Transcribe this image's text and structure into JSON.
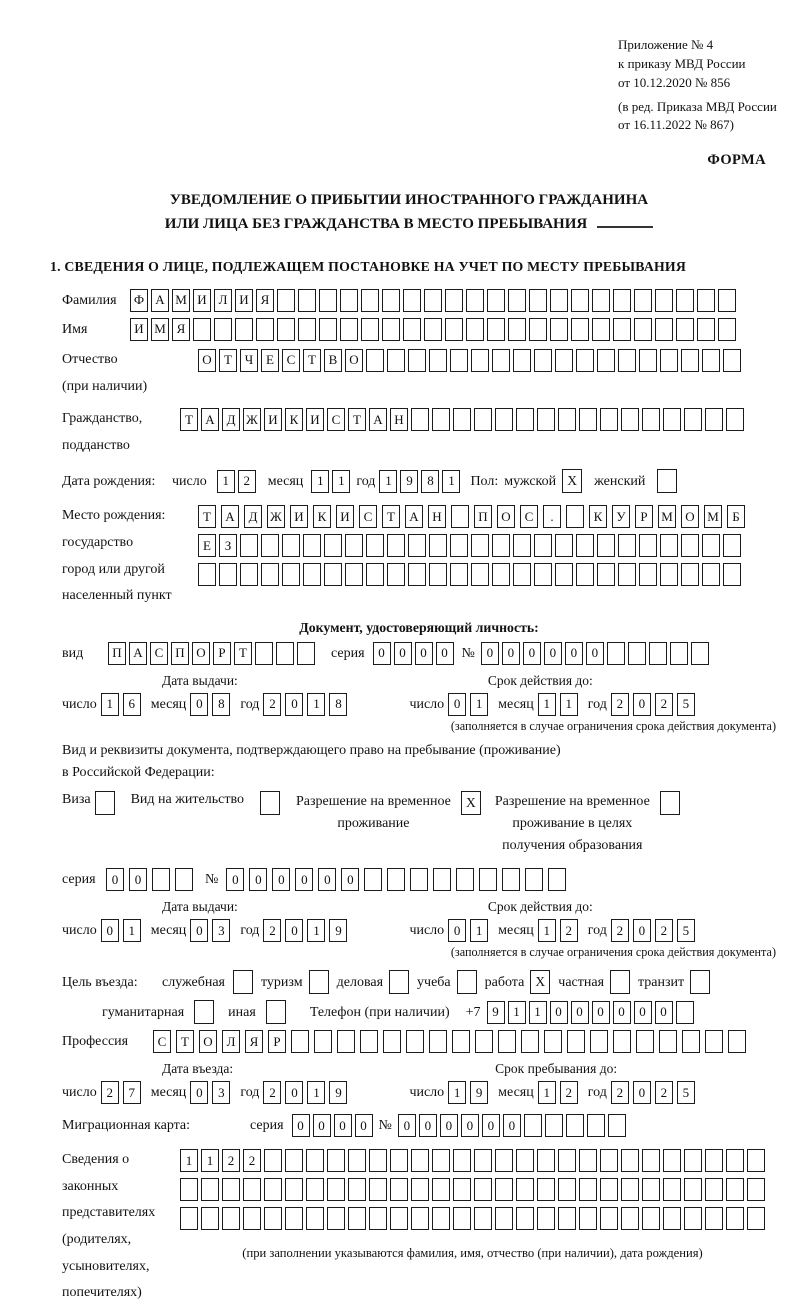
{
  "annex": {
    "lines": [
      "Приложение № 4",
      "к приказу МВД России",
      "от 10.12.2020 № 856"
    ],
    "note_lines": [
      "(в ред. Приказа МВД России",
      "от 16.11.2022 № 867)"
    ]
  },
  "forma_label": "ФОРМА",
  "title": {
    "line1": "УВЕДОМЛЕНИЕ О ПРИБЫТИИ ИНОСТРАННОГО ГРАЖДАНИНА",
    "line2": "ИЛИ ЛИЦА БЕЗ ГРАЖДАНСТВА В МЕСТО ПРЕБЫВАНИЯ"
  },
  "section1_title": "1. СВЕДЕНИЯ О ЛИЦЕ, ПОДЛЕЖАЩЕМ ПОСТАНОВКЕ НА УЧЕТ ПО МЕСТУ ПРЕБЫВАНИЯ",
  "labels": {
    "day": "число",
    "month": "месяц",
    "year": "год",
    "series": "серия",
    "number": "№"
  },
  "surname": {
    "label": "Фамилия",
    "cells": {
      "chars": [
        "Ф",
        "А",
        "М",
        "И",
        "Л",
        "И",
        "Я"
      ],
      "total": 29
    }
  },
  "name": {
    "label": "Имя",
    "cells": {
      "chars": [
        "И",
        "М",
        "Я"
      ],
      "total": 29
    }
  },
  "patronymic": {
    "label": "Отчество",
    "label_note": "(при наличии)",
    "cells": {
      "chars": [
        "О",
        "Т",
        "Ч",
        "Е",
        "С",
        "Т",
        "В",
        "О"
      ],
      "total": 26
    }
  },
  "citizenship": {
    "label_line1": "Гражданство,",
    "label_line2": "подданство",
    "cells": {
      "chars": [
        "Т",
        "А",
        "Д",
        "Ж",
        "И",
        "К",
        "И",
        "С",
        "Т",
        "А",
        "Н"
      ],
      "total": 27
    }
  },
  "birth_date": {
    "label": "Дата рождения:",
    "day": {
      "chars": [
        "1",
        "2"
      ],
      "total": 2
    },
    "month": {
      "chars": [
        "1",
        "1"
      ],
      "total": 2
    },
    "year": {
      "chars": [
        "1",
        "9",
        "8",
        "1"
      ],
      "total": 4
    }
  },
  "sex": {
    "label": "Пол:",
    "male_label": "мужской",
    "male_mark": "X",
    "female_label": "женский",
    "female_mark": ""
  },
  "birth_place": {
    "labels": [
      "Место рождения:",
      "государство",
      "город или другой",
      "населенный пункт"
    ],
    "row1": {
      "chars": [
        "Т",
        "А",
        "Д",
        "Ж",
        "И",
        "К",
        "И",
        "С",
        "Т",
        "А",
        "Н",
        "",
        "П",
        "О",
        "С",
        ".",
        "",
        "К",
        "У",
        "Р",
        "М",
        "О",
        "М",
        "Б"
      ],
      "total": 24
    },
    "row2": {
      "chars": [
        "Е",
        "З"
      ],
      "total": 26
    },
    "row3": {
      "chars": [],
      "total": 26
    }
  },
  "identity_doc": {
    "title": "Документ, удостоверяющий личность:",
    "kind_label": "вид",
    "kind": {
      "chars": [
        "П",
        "А",
        "С",
        "П",
        "О",
        "Р",
        "Т"
      ],
      "total": 10
    },
    "series": {
      "chars": [
        "0",
        "0",
        "0",
        "0"
      ],
      "total": 4
    },
    "number": {
      "chars": [
        "0",
        "0",
        "0",
        "0",
        "0",
        "0"
      ],
      "total": 11
    },
    "issue_caption": "Дата выдачи:",
    "issue": {
      "day": {
        "chars": [
          "1",
          "6"
        ],
        "total": 2
      },
      "month": {
        "chars": [
          "0",
          "8"
        ],
        "total": 2
      },
      "year": {
        "chars": [
          "2",
          "0",
          "1",
          "8"
        ],
        "total": 4
      }
    },
    "valid_caption": "Срок действия до:",
    "valid": {
      "day": {
        "chars": [
          "0",
          "1"
        ],
        "total": 2
      },
      "month": {
        "chars": [
          "1",
          "1"
        ],
        "total": 2
      },
      "year": {
        "chars": [
          "2",
          "0",
          "2",
          "5"
        ],
        "total": 4
      }
    },
    "note": "(заполняется в случае ограничения срока действия документа)"
  },
  "residence_doc": {
    "intro_line1": "Вид и реквизиты документа, подтверждающего право на пребывание (проживание)",
    "intro_line2": "в Российской Федерации:",
    "visa_label": "Виза",
    "visa_mark": "",
    "residence_permit_label": "Вид на жительство",
    "residence_permit_mark": "",
    "temp_permit_lines": [
      "Разрешение на временное",
      "проживание"
    ],
    "temp_permit_mark": "X",
    "edu_permit_lines": [
      "Разрешение на временное",
      "проживание в целях",
      "получения образования"
    ],
    "edu_permit_mark": "",
    "series": {
      "chars": [
        "0",
        "0"
      ],
      "total": 4
    },
    "number": {
      "chars": [
        "0",
        "0",
        "0",
        "0",
        "0",
        "0"
      ],
      "total": 15
    },
    "issue_caption": "Дата выдачи:",
    "issue": {
      "day": {
        "chars": [
          "0",
          "1"
        ],
        "total": 2
      },
      "month": {
        "chars": [
          "0",
          "3"
        ],
        "total": 2
      },
      "year": {
        "chars": [
          "2",
          "0",
          "1",
          "9"
        ],
        "total": 4
      }
    },
    "valid_caption": "Срок действия до:",
    "valid": {
      "day": {
        "chars": [
          "0",
          "1"
        ],
        "total": 2
      },
      "month": {
        "chars": [
          "1",
          "2"
        ],
        "total": 2
      },
      "year": {
        "chars": [
          "2",
          "0",
          "2",
          "5"
        ],
        "total": 4
      }
    },
    "note": "(заполняется в случае ограничения срока действия документа)"
  },
  "purpose": {
    "label": "Цель въезда:",
    "options_row1": [
      {
        "label": "служебная",
        "mark": ""
      },
      {
        "label": "туризм",
        "mark": ""
      },
      {
        "label": "деловая",
        "mark": ""
      },
      {
        "label": "учеба",
        "mark": ""
      },
      {
        "label": "работа",
        "mark": "X"
      },
      {
        "label": "частная",
        "mark": ""
      },
      {
        "label": "транзит",
        "mark": ""
      }
    ],
    "options_row2": [
      {
        "label": "гуманитарная",
        "mark": ""
      },
      {
        "label": "иная",
        "mark": ""
      }
    ]
  },
  "phone": {
    "label": "Телефон (при наличии)",
    "prefix": "+7",
    "cells": {
      "chars": [
        "9",
        "1",
        "1",
        "0",
        "0",
        "0",
        "0",
        "0",
        "0"
      ],
      "total": 10
    }
  },
  "profession": {
    "label": "Профессия",
    "cells": {
      "chars": [
        "С",
        "Т",
        "О",
        "Л",
        "Я",
        "Р"
      ],
      "total": 26
    }
  },
  "entry": {
    "date_caption": "Дата въезда:",
    "date": {
      "day": {
        "chars": [
          "2",
          "7"
        ],
        "total": 2
      },
      "month": {
        "chars": [
          "0",
          "3"
        ],
        "total": 2
      },
      "year": {
        "chars": [
          "2",
          "0",
          "1",
          "9"
        ],
        "total": 4
      }
    },
    "until_caption": "Срок пребывания до:",
    "until": {
      "day": {
        "chars": [
          "1",
          "9"
        ],
        "total": 2
      },
      "month": {
        "chars": [
          "1",
          "2"
        ],
        "total": 2
      },
      "year": {
        "chars": [
          "2",
          "0",
          "2",
          "5"
        ],
        "total": 4
      }
    }
  },
  "migration_card": {
    "label": "Миграционная карта:",
    "series": {
      "chars": [
        "0",
        "0",
        "0",
        "0"
      ],
      "total": 4
    },
    "number": {
      "chars": [
        "0",
        "0",
        "0",
        "0",
        "0",
        "0"
      ],
      "total": 11
    }
  },
  "representatives": {
    "labels": [
      "Сведения о",
      "законных",
      "представителях",
      "(родителях,",
      "усыновителях,",
      "попечителях)"
    ],
    "row1": {
      "chars": [
        "1",
        "1",
        "2",
        "2"
      ],
      "total": 28
    },
    "row2": {
      "chars": [],
      "total": 28
    },
    "row3": {
      "chars": [],
      "total": 28
    },
    "note": "(при заполнении указываются фамилия, имя, отчество (при наличии), дата рождения)"
  }
}
